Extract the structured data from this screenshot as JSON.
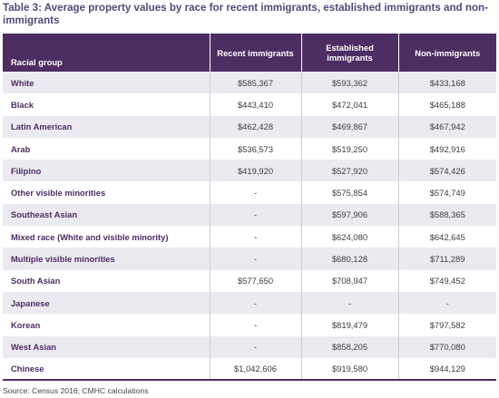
{
  "caption": "Table 3: Average property values by race for recent immigrants, established immigrants and non-immigrants",
  "columns": {
    "group": "Racial group",
    "recent": "Recent immigrants",
    "established": "Established immigrants",
    "non": "Non-immigrants"
  },
  "rows": [
    {
      "group": "White",
      "recent": "$585,367",
      "established": "$593,362",
      "non": "$433,168"
    },
    {
      "group": "Black",
      "recent": "$443,410",
      "established": "$472,041",
      "non": "$465,188"
    },
    {
      "group": "Latin American",
      "recent": "$462,428",
      "established": "$469,867",
      "non": "$467,942"
    },
    {
      "group": "Arab",
      "recent": "$536,573",
      "established": "$519,250",
      "non": "$492,916"
    },
    {
      "group": "Filipino",
      "recent": "$419,920",
      "established": "$527,920",
      "non": "$574,426"
    },
    {
      "group": "Other visible minorities",
      "recent": "-",
      "established": "$575,854",
      "non": "$574,749"
    },
    {
      "group": "Southeast Asian",
      "recent": "-",
      "established": "$597,906",
      "non": "$588,365"
    },
    {
      "group": "Mixed race (White and visible minority)",
      "recent": "-",
      "established": "$624,080",
      "non": "$642,645"
    },
    {
      "group": "Multiple visible minorities",
      "recent": "-",
      "established": "$680,128",
      "non": "$711,289"
    },
    {
      "group": "South Asian",
      "recent": "$577,650",
      "established": "$708,947",
      "non": "$749,452"
    },
    {
      "group": "Japanese",
      "recent": "-",
      "established": "-",
      "non": "-"
    },
    {
      "group": "Korean",
      "recent": "-",
      "established": "$819,479",
      "non": "$797,582"
    },
    {
      "group": "West Asian",
      "recent": "-",
      "established": "$858,205",
      "non": "$770,080"
    },
    {
      "group": "Chinese",
      "recent": "$1,042,606",
      "established": "$919,580",
      "non": "$944,129"
    }
  ],
  "source": "Source: Census 2016; CMHC calculations"
}
